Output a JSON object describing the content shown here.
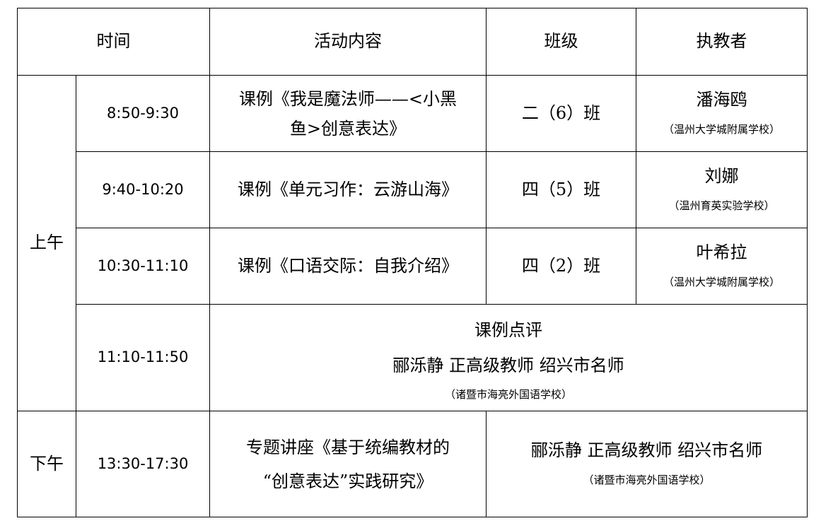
{
  "header": {
    "time": "时间",
    "content": "活动内容",
    "class": "班级",
    "teacher": "执教者"
  },
  "sessions": {
    "morning": "上午",
    "afternoon": "下午"
  },
  "rows": [
    {
      "time": "8:50-9:30",
      "content_line1": "课例《我是魔法师——<小黑",
      "content_line2": "鱼>创意表达》",
      "class": "二（6）班",
      "teacher": "潘海鸥",
      "school": "（温州大学城附属学校）"
    },
    {
      "time": "9:40-10:20",
      "content": "课例《单元习作：云游山海》",
      "class": "四（5）班",
      "teacher": "刘娜",
      "school": "（温州育英实验学校）"
    },
    {
      "time": "10:30-11:10",
      "content": "课例《口语交际：自我介绍》",
      "class": "四（2）班",
      "teacher": "叶希拉",
      "school": "（温州大学城附属学校）"
    }
  ],
  "review": {
    "time": "11:10-11:50",
    "title": "课例点评",
    "person": "郦泺静 正高级教师 绍兴市名师",
    "school": "（诸暨市海亮外国语学校）"
  },
  "lecture": {
    "time": "13:30-17:30",
    "content_line1": "专题讲座《基于统编教材的",
    "content_line2": "“创意表达”实践研究》",
    "person": "郦泺静 正高级教师 绍兴市名师",
    "school": "（诸暨市海亮外国语学校）"
  }
}
